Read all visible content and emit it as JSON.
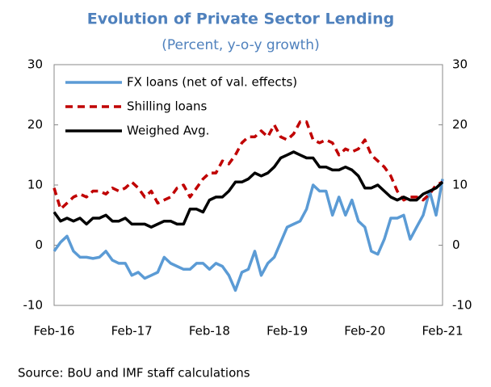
{
  "chart_data": {
    "type": "line",
    "title": "Evolution of Private Sector Lending",
    "subtitle": "(Percent, y-o-y growth)",
    "source": "Source: BoU and IMF staff calculations",
    "categories": [
      "Feb-16",
      null,
      null,
      null,
      null,
      null,
      null,
      null,
      null,
      null,
      null,
      null,
      "Feb-17",
      null,
      null,
      null,
      null,
      null,
      null,
      null,
      null,
      null,
      null,
      null,
      "Feb-18",
      null,
      null,
      null,
      null,
      null,
      null,
      null,
      null,
      null,
      null,
      null,
      "Feb-19",
      null,
      null,
      null,
      null,
      null,
      null,
      null,
      null,
      null,
      null,
      null,
      "Feb-20",
      null,
      null,
      null,
      null,
      null,
      null,
      null,
      null,
      null,
      null,
      null,
      "Feb-21"
    ],
    "series": [
      {
        "name": "FX loans (net of val. effects)",
        "color": "#5b9bd5",
        "dash": false,
        "values": [
          -1,
          0.5,
          1.5,
          -1,
          -2,
          -2,
          -2.2,
          -2,
          -1,
          -2.5,
          -3,
          -3,
          -5,
          -4.5,
          -5.5,
          -5,
          -4.5,
          -2,
          -3,
          -3.5,
          -4,
          -4,
          -3,
          -3,
          -4,
          -3,
          -3.5,
          -5,
          -7.5,
          -4.5,
          -4,
          -1,
          -5,
          -3,
          -2,
          0.5,
          3,
          3.5,
          4,
          6,
          10,
          9,
          9,
          5,
          8,
          5,
          7.5,
          4,
          3,
          -1,
          -1.5,
          1,
          4.5,
          4.5,
          5,
          1,
          3,
          5,
          9,
          5,
          11
        ]
      },
      {
        "name": "Shilling loans",
        "color": "#c00000",
        "dash": true,
        "values": [
          9.5,
          6,
          7,
          8,
          8.5,
          8,
          9,
          9,
          8.5,
          9.5,
          9,
          9.5,
          10.5,
          9.5,
          8,
          9,
          7,
          7.5,
          8,
          9.5,
          10,
          8,
          9.5,
          11,
          12,
          12,
          14,
          13.5,
          15,
          17,
          18,
          18,
          19,
          18,
          20,
          18,
          17.5,
          18.5,
          20.5,
          20.5,
          17.5,
          17,
          17.5,
          17,
          15,
          16,
          15.5,
          16,
          17.5,
          15,
          14,
          13,
          11.5,
          9,
          7.5,
          8,
          8,
          7.5,
          8.5,
          10,
          10.5
        ]
      },
      {
        "name": "Weighed Avg.",
        "color": "#000000",
        "dash": false,
        "values": [
          5.5,
          4,
          4.5,
          4,
          4.5,
          3.5,
          4.5,
          4.5,
          5,
          4,
          4,
          4.5,
          3.5,
          3.5,
          3.5,
          3,
          3.5,
          4,
          4,
          3.5,
          3.5,
          6,
          6,
          5.5,
          7.5,
          8,
          8,
          9,
          10.5,
          10.5,
          11,
          12,
          11.5,
          12,
          13,
          14.5,
          15,
          15.5,
          15,
          14.5,
          14.5,
          13,
          13,
          12.5,
          12.5,
          13,
          12.5,
          11.5,
          9.5,
          9.5,
          10,
          9,
          8,
          7.5,
          8,
          7.5,
          7.5,
          8.5,
          9,
          9.5,
          10.5
        ]
      }
    ],
    "ylim": [
      -10,
      30
    ],
    "yticks": [
      -10,
      0,
      10,
      20,
      30
    ],
    "y2lim": [
      -10,
      30
    ],
    "y2ticks": [
      -10,
      0,
      10,
      20,
      30
    ],
    "grid": false,
    "legend": "top-left"
  }
}
